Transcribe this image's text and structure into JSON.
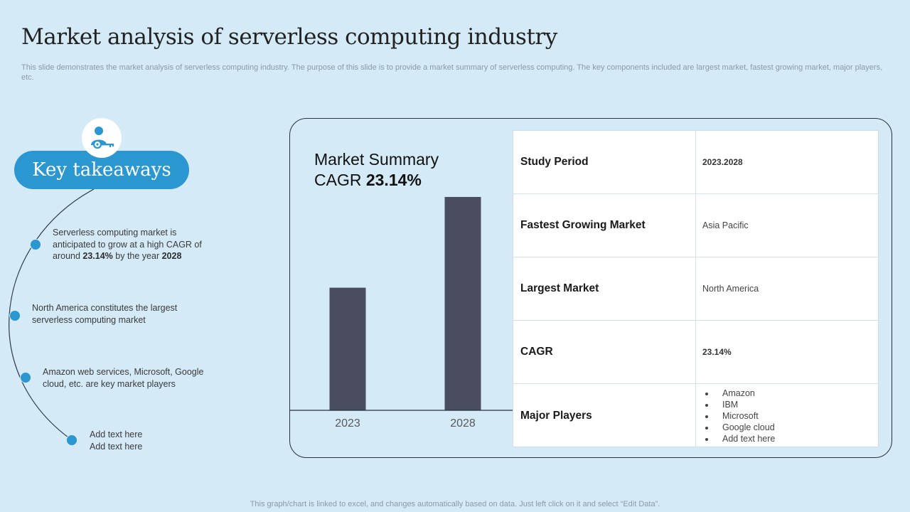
{
  "page": {
    "title": "Market analysis of  serverless computing industry",
    "subtitle": "This slide demonstrates the market analysis of serverless computing industry. The purpose of this slide is to provide a market summary of serverless computing. The key components included are largest market, fastest growing market, major players, etc.",
    "footer": "This graph/chart is linked to excel,  and changes automatically based on data. Just left click on it and select “Edit Data”."
  },
  "key_takeaways": {
    "heading": "Key takeaways",
    "icon": "user-key-icon",
    "items": [
      {
        "pre": "Serverless  computing  market  is anticipated to grow  at a high CAGR of around ",
        "b1": "23.14%",
        "mid": "  by the year ",
        "b2": "2028"
      },
      {
        "text": "North America  constitutes the largest serverless  computing market"
      },
      {
        "text": "Amazon web services, Microsoft,  Google cloud,  etc.  are  key market players"
      },
      {
        "line1": "Add text here",
        "line2": "Add text here"
      }
    ]
  },
  "market_summary": {
    "label": "Market Summary",
    "cagr_label": "CAGR",
    "cagr_value": "23.14%"
  },
  "chart_data": {
    "type": "bar",
    "categories": [
      "2023",
      "2028"
    ],
    "values": [
      1.0,
      1.74
    ],
    "title": "Market Summary CAGR 23.14%",
    "xlabel": "",
    "ylabel": "",
    "ylim": [
      0,
      1.85
    ],
    "grid": false,
    "bar_color": "#4a4d60"
  },
  "summary_table": {
    "rows": [
      {
        "label": "Study Period",
        "value": "2023.2028"
      },
      {
        "label": "Fastest Growing Market",
        "value": "Asia Pacific"
      },
      {
        "label": "Largest Market",
        "value": "North America"
      },
      {
        "label": "CAGR",
        "value": "23.14%"
      },
      {
        "label": "Major Players",
        "items": [
          "Amazon",
          "IBM",
          "Microsoft",
          "Google cloud",
          "Add text here"
        ]
      }
    ]
  },
  "colors": {
    "background": "#d4eaf6",
    "accent": "#2a97d0",
    "bar": "#4a4d60"
  }
}
